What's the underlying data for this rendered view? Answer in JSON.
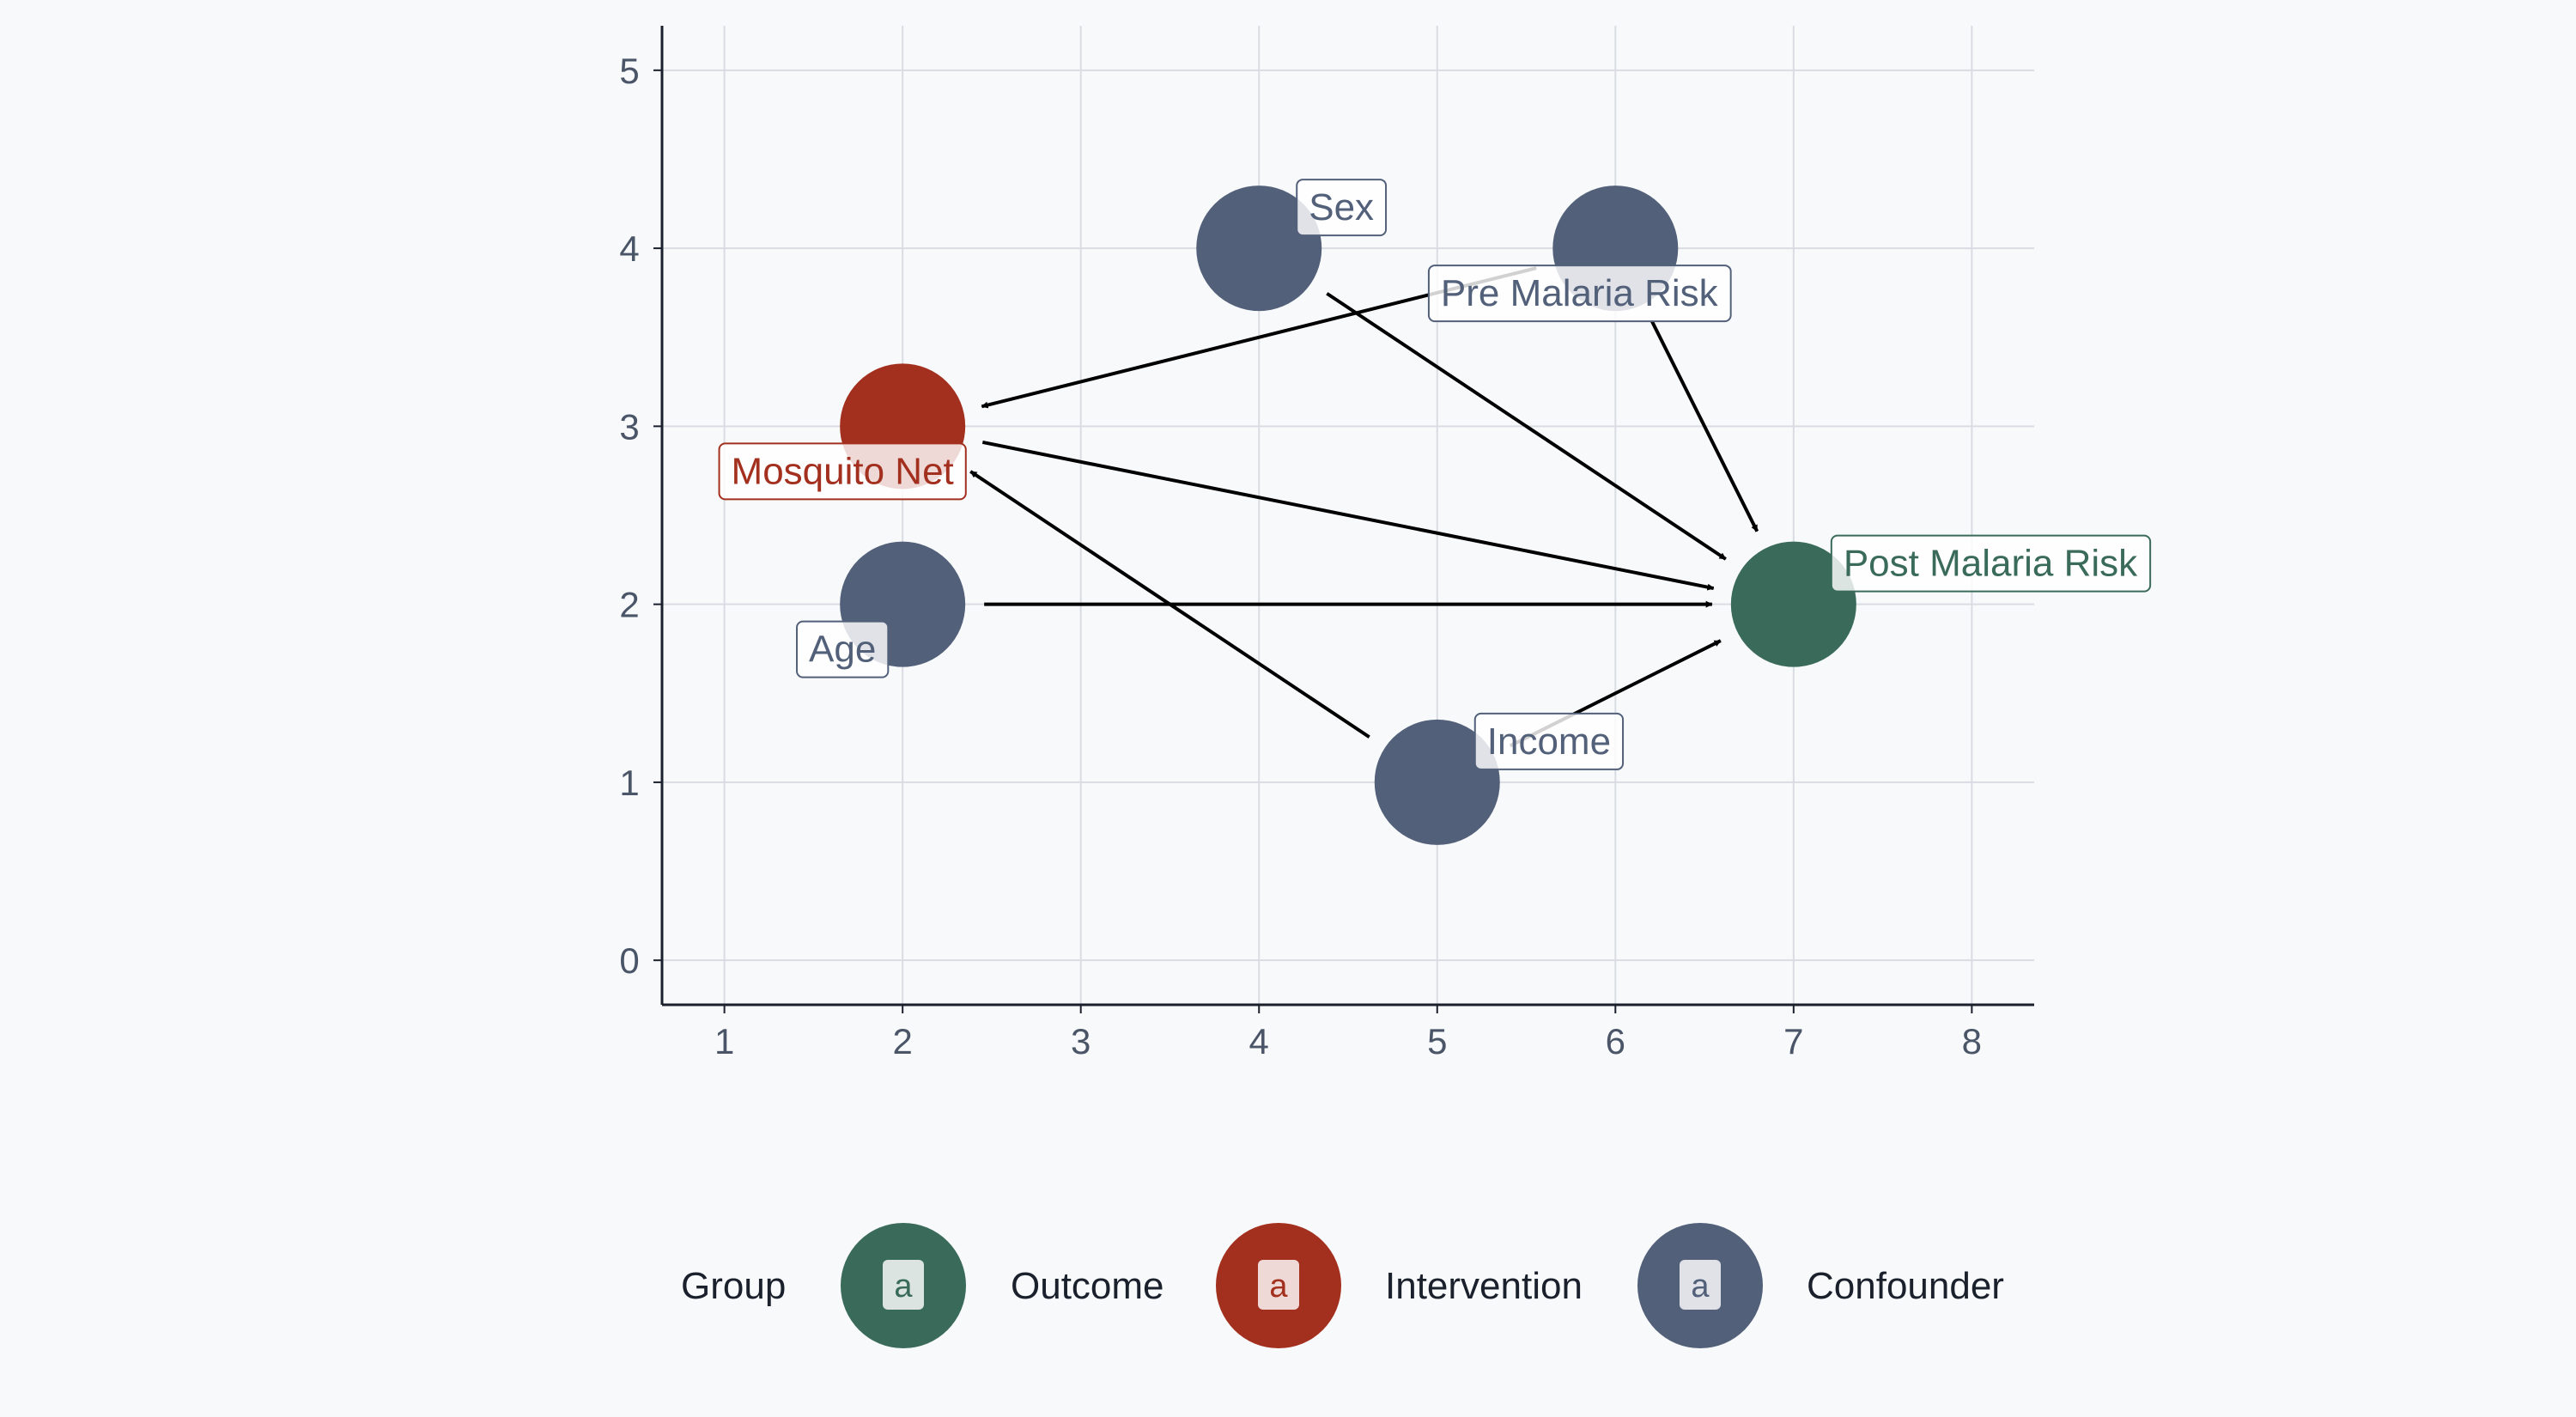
{
  "chart_data": {
    "type": "dag",
    "xlim": [
      0.65,
      8.35
    ],
    "ylim": [
      -0.25,
      5.25
    ],
    "x_ticks": [
      1,
      2,
      3,
      4,
      5,
      6,
      7,
      8
    ],
    "y_ticks": [
      0,
      1,
      2,
      3,
      4,
      5
    ],
    "grid": true,
    "colors": {
      "Outcome": "#3a6b5a",
      "Intervention": "#a3301f",
      "Confounder": "#52607a",
      "grid": "#d9dde3",
      "axis": "#1a202c",
      "edge": "#000000"
    },
    "nodes": [
      {
        "id": "sex",
        "label": "Sex",
        "x": 4,
        "y": 4,
        "group": "Confounder",
        "label_pos": "upper-right"
      },
      {
        "id": "pre_malaria",
        "label": "Pre Malaria Risk",
        "x": 6,
        "y": 4,
        "group": "Confounder",
        "label_pos": "below"
      },
      {
        "id": "net",
        "label": "Mosquito Net",
        "x": 2,
        "y": 3,
        "group": "Intervention",
        "label_pos": "lower-left"
      },
      {
        "id": "age",
        "label": "Age",
        "x": 2,
        "y": 2,
        "group": "Confounder",
        "label_pos": "lower-left"
      },
      {
        "id": "post_malaria",
        "label": "Post Malaria Risk",
        "x": 7,
        "y": 2,
        "group": "Outcome",
        "label_pos": "upper-right"
      },
      {
        "id": "income",
        "label": "Income",
        "x": 5,
        "y": 1,
        "group": "Confounder",
        "label_pos": "upper-right"
      }
    ],
    "edges": [
      {
        "from": "pre_malaria",
        "to": "net"
      },
      {
        "from": "pre_malaria",
        "to": "post_malaria"
      },
      {
        "from": "sex",
        "to": "post_malaria"
      },
      {
        "from": "net",
        "to": "post_malaria"
      },
      {
        "from": "age",
        "to": "post_malaria"
      },
      {
        "from": "income",
        "to": "net"
      },
      {
        "from": "income",
        "to": "post_malaria"
      }
    ],
    "legend": {
      "title": "Group",
      "position": "bottom",
      "key_letter": "a",
      "items": [
        "Outcome",
        "Intervention",
        "Confounder"
      ]
    }
  }
}
